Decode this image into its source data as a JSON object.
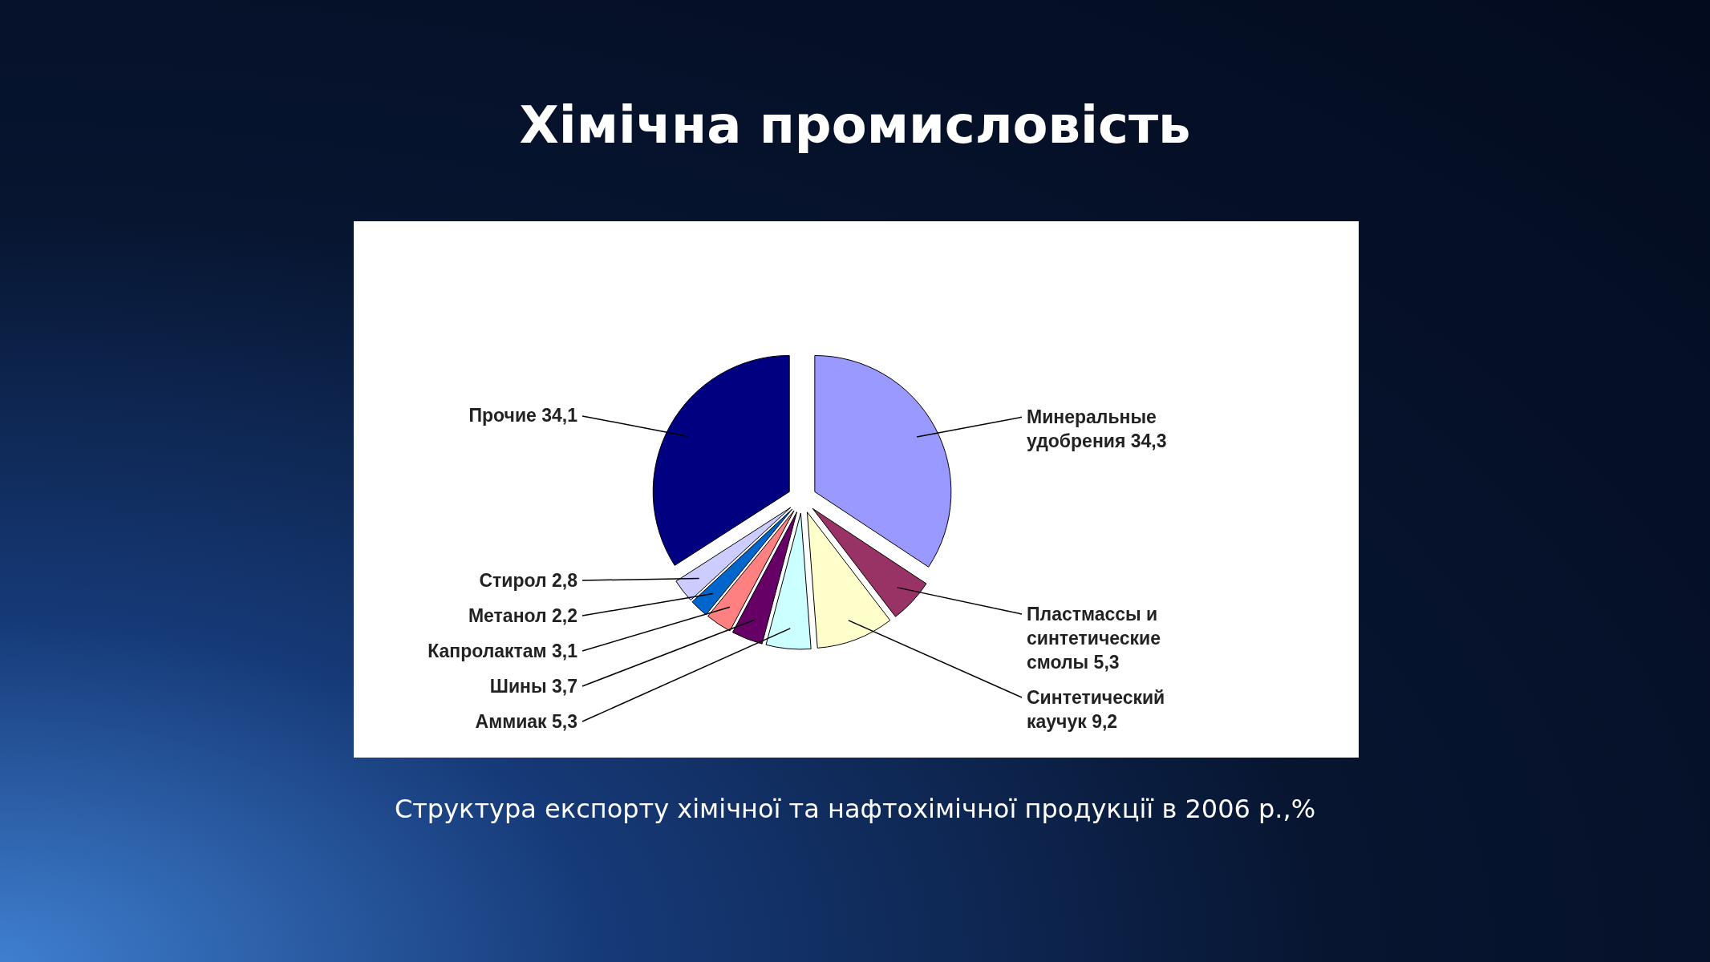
{
  "chart_data": {
    "type": "pie",
    "title": "Хімічна промисловість",
    "categories": [
      "Минеральные удобрения",
      "Пластмассы и синтетические смолы",
      "Синтетический каучук",
      "Аммиак",
      "Шины",
      "Капролактам",
      "Метанол",
      "Стирол",
      "Прочие"
    ],
    "values": [
      34.3,
      5.3,
      9.2,
      5.3,
      3.7,
      3.1,
      2.2,
      2.8,
      34.1
    ],
    "value_labels": [
      "34,3",
      "5,3",
      "9,2",
      "5,3",
      "3,7",
      "3,1",
      "2,2",
      "2,8",
      "34,1"
    ],
    "colors": [
      "#9999ff",
      "#993366",
      "#ffffcc",
      "#ccffff",
      "#660066",
      "#ff8080",
      "#0066cc",
      "#ccccff",
      "#000080"
    ],
    "annotations": [
      "Структура експорту хімічної та нафтохімічної продукції в 2006 р.,%"
    ]
  }
}
